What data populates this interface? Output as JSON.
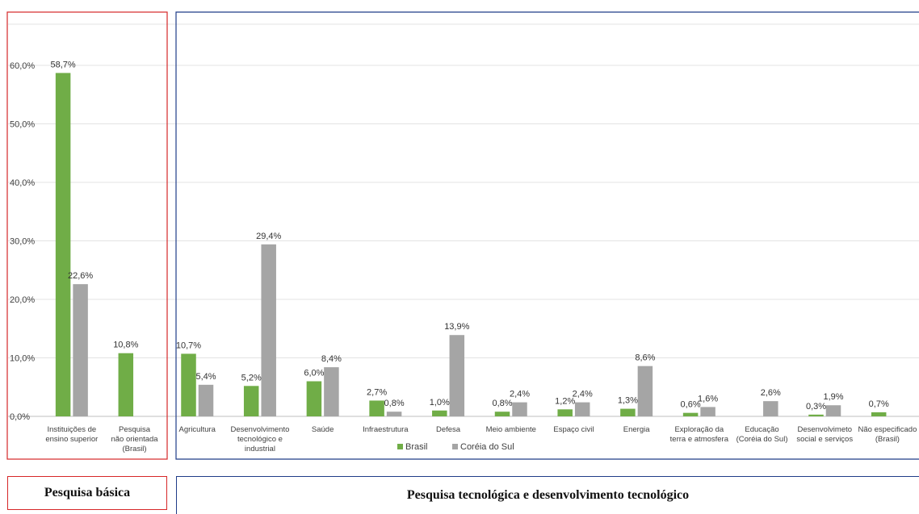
{
  "chart_data": {
    "type": "bar",
    "categories": [
      [
        "Instituições de",
        "ensino superior"
      ],
      [
        "Pesquisa",
        "não orientada",
        "(Brasil)"
      ],
      [
        "Agricultura"
      ],
      [
        "Desenvolvimento",
        "tecnológico e",
        "industrial"
      ],
      [
        "Saúde"
      ],
      [
        "Infraestrutura"
      ],
      [
        "Defesa"
      ],
      [
        "Meio ambiente"
      ],
      [
        "Espaço civil"
      ],
      [
        "Energia"
      ],
      [
        "Exploração da",
        "terra e atmosfera"
      ],
      [
        "Educação",
        "(Coréia do Sul)"
      ],
      [
        "Desenvolvimeto",
        "social e serviços"
      ],
      [
        "Não especificado",
        "(Brasil)"
      ]
    ],
    "series": [
      {
        "name": "Brasil",
        "color": "#70ad47",
        "values": [
          58.7,
          10.8,
          10.7,
          5.2,
          6.0,
          2.7,
          1.0,
          0.8,
          1.2,
          1.3,
          0.6,
          null,
          0.3,
          0.7
        ],
        "labels": [
          "58,7%",
          "10,8%",
          "10,7%",
          "5,2%",
          "6,0%",
          "2,7%",
          "1,0%",
          "0,8%",
          "1,2%",
          "1,3%",
          "0,6%",
          "",
          "0,3%",
          "0,7%"
        ]
      },
      {
        "name": "Coréia do Sul",
        "color": "#a5a5a5",
        "values": [
          22.6,
          null,
          5.4,
          29.4,
          8.4,
          0.8,
          13.9,
          2.4,
          2.4,
          8.6,
          1.6,
          2.6,
          1.9,
          null
        ],
        "labels": [
          "22,6%",
          "",
          "5,4%",
          "29,4%",
          "8,4%",
          "0,8%",
          "13,9%",
          "2,4%",
          "2,4%",
          "8,6%",
          "1,6%",
          "2,6%",
          "1,9%",
          ""
        ]
      }
    ],
    "ylim": [
      0,
      70
    ],
    "yticks": [
      0,
      10,
      20,
      30,
      40,
      50,
      60
    ],
    "ytick_labels": [
      "0,0%",
      "10,0%",
      "20,0%",
      "30,0%",
      "40,0%",
      "50,0%",
      "60,0%"
    ],
    "grid": true,
    "legend": "bottom-center"
  },
  "groups": {
    "basic_label": "Pesquisa básica",
    "tech_label": "Pesquisa tecnológica e desenvolvimento tecnológico",
    "basic_border_color": "#d62728",
    "tech_border_color": "#1f3c88"
  }
}
